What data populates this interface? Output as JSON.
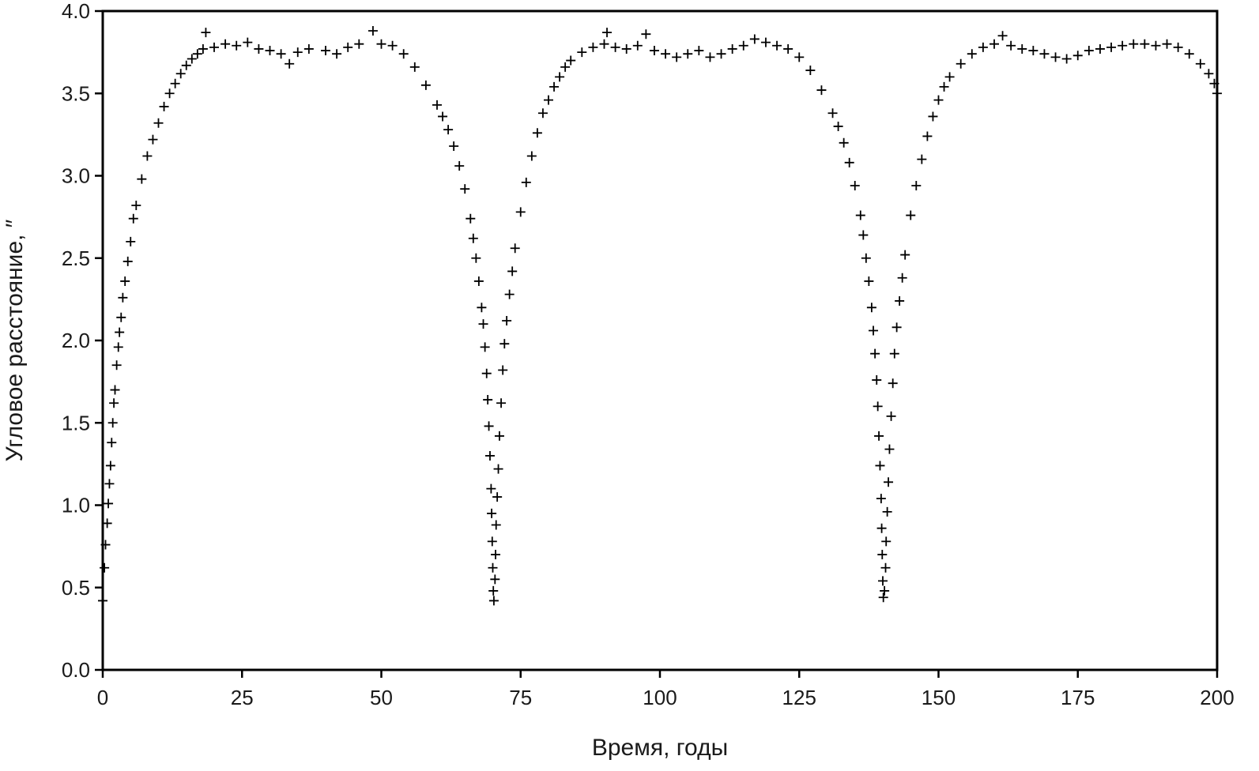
{
  "chart_data": {
    "type": "scatter",
    "marker": "plus",
    "xlabel": "Время, годы",
    "ylabel": "Угловое расстояние, ″",
    "xlim": [
      0,
      200
    ],
    "ylim": [
      0,
      4
    ],
    "x_ticks": [
      "0",
      "25",
      "50",
      "75",
      "100",
      "125",
      "150",
      "175",
      "200"
    ],
    "y_ticks": [
      "0.0",
      "0.5",
      "1.0",
      "1.5",
      "2.0",
      "2.5",
      "3.0",
      "3.5",
      "4.0"
    ],
    "grid": false,
    "legend": "none",
    "colors": {
      "marker": "#000000",
      "axes": "#000000",
      "background": "#ffffff"
    },
    "period_years": 70,
    "minima": [
      {
        "x": 0,
        "y": 0.42
      },
      {
        "x": 70,
        "y": 0.42
      },
      {
        "x": 140,
        "y": 0.42
      }
    ],
    "series": [
      {
        "points": [
          [
            0.0,
            0.42
          ],
          [
            0.3,
            0.62
          ],
          [
            0.5,
            0.76
          ],
          [
            0.8,
            0.89
          ],
          [
            1.0,
            1.01
          ],
          [
            1.2,
            1.13
          ],
          [
            1.4,
            1.24
          ],
          [
            1.6,
            1.38
          ],
          [
            1.8,
            1.5
          ],
          [
            2.0,
            1.62
          ],
          [
            2.2,
            1.7
          ],
          [
            2.5,
            1.85
          ],
          [
            2.8,
            1.96
          ],
          [
            3.0,
            2.05
          ],
          [
            3.3,
            2.14
          ],
          [
            3.6,
            2.26
          ],
          [
            4.0,
            2.36
          ],
          [
            4.5,
            2.48
          ],
          [
            5.0,
            2.6
          ],
          [
            5.5,
            2.74
          ],
          [
            6.0,
            2.82
          ],
          [
            7.0,
            2.98
          ],
          [
            8.0,
            3.12
          ],
          [
            9.0,
            3.22
          ],
          [
            10.0,
            3.32
          ],
          [
            11.0,
            3.42
          ],
          [
            12.0,
            3.5
          ],
          [
            13.0,
            3.56
          ],
          [
            14.0,
            3.62
          ],
          [
            15.0,
            3.67
          ],
          [
            16.0,
            3.71
          ],
          [
            17.0,
            3.74
          ],
          [
            18.0,
            3.77
          ],
          [
            18.5,
            3.87
          ],
          [
            20.0,
            3.78
          ],
          [
            22.0,
            3.8
          ],
          [
            24.0,
            3.79
          ],
          [
            26.0,
            3.81
          ],
          [
            28.0,
            3.77
          ],
          [
            30.0,
            3.76
          ],
          [
            32.0,
            3.74
          ],
          [
            33.5,
            3.68
          ],
          [
            35.0,
            3.75
          ],
          [
            37.0,
            3.77
          ],
          [
            40.0,
            3.76
          ],
          [
            42.0,
            3.74
          ],
          [
            44.0,
            3.78
          ],
          [
            46.0,
            3.8
          ],
          [
            48.5,
            3.88
          ],
          [
            50.0,
            3.8
          ],
          [
            52.0,
            3.79
          ],
          [
            54.0,
            3.74
          ],
          [
            56.0,
            3.66
          ],
          [
            58.0,
            3.55
          ],
          [
            60.0,
            3.43
          ],
          [
            61.0,
            3.36
          ],
          [
            62.0,
            3.28
          ],
          [
            63.0,
            3.18
          ],
          [
            64.0,
            3.06
          ],
          [
            65.0,
            2.92
          ],
          [
            66.0,
            2.74
          ],
          [
            66.5,
            2.62
          ],
          [
            67.0,
            2.5
          ],
          [
            67.5,
            2.36
          ],
          [
            68.0,
            2.2
          ],
          [
            68.3,
            2.1
          ],
          [
            68.6,
            1.96
          ],
          [
            68.9,
            1.8
          ],
          [
            69.1,
            1.64
          ],
          [
            69.3,
            1.48
          ],
          [
            69.5,
            1.3
          ],
          [
            69.7,
            1.1
          ],
          [
            69.8,
            0.95
          ],
          [
            69.9,
            0.78
          ],
          [
            70.0,
            0.62
          ],
          [
            70.1,
            0.48
          ],
          [
            70.2,
            0.42
          ],
          [
            70.4,
            0.55
          ],
          [
            70.5,
            0.7
          ],
          [
            70.6,
            0.88
          ],
          [
            70.8,
            1.05
          ],
          [
            71.0,
            1.22
          ],
          [
            71.2,
            1.42
          ],
          [
            71.5,
            1.62
          ],
          [
            71.8,
            1.82
          ],
          [
            72.1,
            1.98
          ],
          [
            72.5,
            2.12
          ],
          [
            73.0,
            2.28
          ],
          [
            73.5,
            2.42
          ],
          [
            74.0,
            2.56
          ],
          [
            75.0,
            2.78
          ],
          [
            76.0,
            2.96
          ],
          [
            77.0,
            3.12
          ],
          [
            78.0,
            3.26
          ],
          [
            79.0,
            3.38
          ],
          [
            80.0,
            3.46
          ],
          [
            81.0,
            3.54
          ],
          [
            82.0,
            3.6
          ],
          [
            83.0,
            3.66
          ],
          [
            84.0,
            3.7
          ],
          [
            86.0,
            3.75
          ],
          [
            88.0,
            3.78
          ],
          [
            90.0,
            3.8
          ],
          [
            90.5,
            3.87
          ],
          [
            92.0,
            3.78
          ],
          [
            94.0,
            3.77
          ],
          [
            96.0,
            3.79
          ],
          [
            97.5,
            3.86
          ],
          [
            99.0,
            3.76
          ],
          [
            101.0,
            3.74
          ],
          [
            103.0,
            3.72
          ],
          [
            105.0,
            3.74
          ],
          [
            107.0,
            3.76
          ],
          [
            109.0,
            3.72
          ],
          [
            111.0,
            3.74
          ],
          [
            113.0,
            3.77
          ],
          [
            115.0,
            3.79
          ],
          [
            117.0,
            3.83
          ],
          [
            119.0,
            3.81
          ],
          [
            121.0,
            3.79
          ],
          [
            123.0,
            3.77
          ],
          [
            125.0,
            3.72
          ],
          [
            127.0,
            3.64
          ],
          [
            129.0,
            3.52
          ],
          [
            131.0,
            3.38
          ],
          [
            132.0,
            3.3
          ],
          [
            133.0,
            3.2
          ],
          [
            134.0,
            3.08
          ],
          [
            135.0,
            2.94
          ],
          [
            136.0,
            2.76
          ],
          [
            136.5,
            2.64
          ],
          [
            137.0,
            2.5
          ],
          [
            137.5,
            2.36
          ],
          [
            138.0,
            2.2
          ],
          [
            138.3,
            2.06
          ],
          [
            138.6,
            1.92
          ],
          [
            138.9,
            1.76
          ],
          [
            139.1,
            1.6
          ],
          [
            139.3,
            1.42
          ],
          [
            139.5,
            1.24
          ],
          [
            139.7,
            1.04
          ],
          [
            139.8,
            0.86
          ],
          [
            139.9,
            0.7
          ],
          [
            140.0,
            0.54
          ],
          [
            140.1,
            0.44
          ],
          [
            140.3,
            0.48
          ],
          [
            140.5,
            0.62
          ],
          [
            140.6,
            0.78
          ],
          [
            140.8,
            0.96
          ],
          [
            141.0,
            1.14
          ],
          [
            141.2,
            1.34
          ],
          [
            141.5,
            1.54
          ],
          [
            141.8,
            1.74
          ],
          [
            142.1,
            1.92
          ],
          [
            142.5,
            2.08
          ],
          [
            143.0,
            2.24
          ],
          [
            143.5,
            2.38
          ],
          [
            144.0,
            2.52
          ],
          [
            145.0,
            2.76
          ],
          [
            146.0,
            2.94
          ],
          [
            147.0,
            3.1
          ],
          [
            148.0,
            3.24
          ],
          [
            149.0,
            3.36
          ],
          [
            150.0,
            3.46
          ],
          [
            151.0,
            3.54
          ],
          [
            152.0,
            3.6
          ],
          [
            154.0,
            3.68
          ],
          [
            156.0,
            3.74
          ],
          [
            158.0,
            3.78
          ],
          [
            160.0,
            3.8
          ],
          [
            161.5,
            3.85
          ],
          [
            163.0,
            3.79
          ],
          [
            165.0,
            3.77
          ],
          [
            167.0,
            3.76
          ],
          [
            169.0,
            3.74
          ],
          [
            171.0,
            3.72
          ],
          [
            173.0,
            3.71
          ],
          [
            175.0,
            3.73
          ],
          [
            177.0,
            3.76
          ],
          [
            179.0,
            3.77
          ],
          [
            181.0,
            3.78
          ],
          [
            183.0,
            3.79
          ],
          [
            185.0,
            3.8
          ],
          [
            187.0,
            3.8
          ],
          [
            189.0,
            3.79
          ],
          [
            191.0,
            3.8
          ],
          [
            193.0,
            3.78
          ],
          [
            195.0,
            3.74
          ],
          [
            197.0,
            3.68
          ],
          [
            198.5,
            3.62
          ],
          [
            199.5,
            3.56
          ],
          [
            200.0,
            3.5
          ]
        ]
      }
    ]
  }
}
